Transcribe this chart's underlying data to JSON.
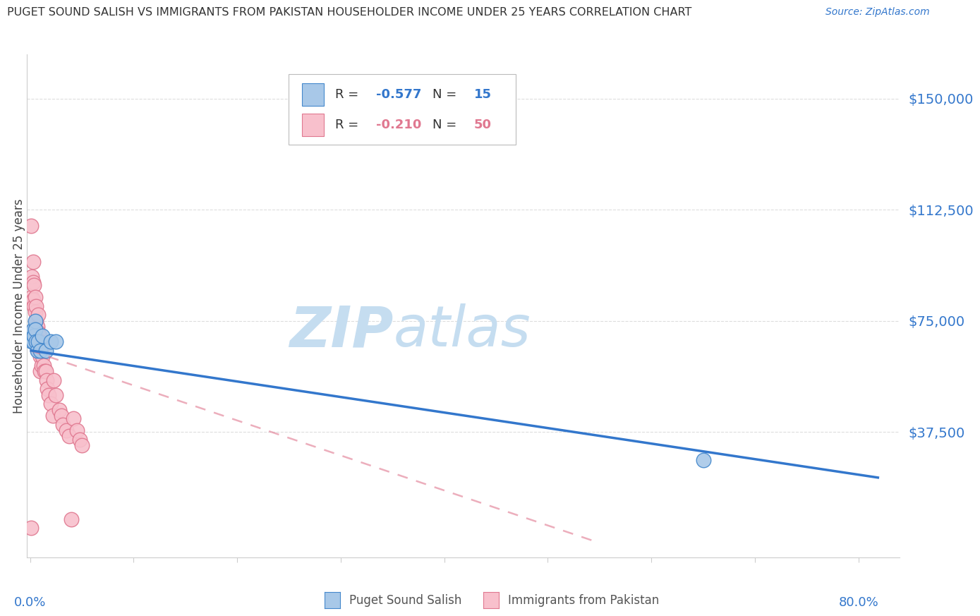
{
  "title": "PUGET SOUND SALISH VS IMMIGRANTS FROM PAKISTAN HOUSEHOLDER INCOME UNDER 25 YEARS CORRELATION CHART",
  "source": "Source: ZipAtlas.com",
  "ylabel": "Householder Income Under 25 years",
  "ytick_labels": [
    "$150,000",
    "$112,500",
    "$75,000",
    "$37,500"
  ],
  "ytick_values": [
    150000,
    112500,
    75000,
    37500
  ],
  "ylim": [
    -5000,
    165000
  ],
  "xlim": [
    -0.003,
    0.84
  ],
  "blue_color": "#a8c8e8",
  "blue_edge_color": "#4488cc",
  "blue_line_color": "#3377cc",
  "pink_color": "#f8c0cc",
  "pink_edge_color": "#e07890",
  "pink_line_color": "#cc8899",
  "watermark_zip_color": "#c5ddf0",
  "watermark_atlas_color": "#c5ddf0",
  "blue_scatter_x": [
    0.002,
    0.003,
    0.003,
    0.004,
    0.005,
    0.005,
    0.006,
    0.007,
    0.008,
    0.01,
    0.012,
    0.015,
    0.02,
    0.025,
    0.65
  ],
  "blue_scatter_y": [
    68000,
    72000,
    68000,
    70000,
    75000,
    72000,
    68000,
    65000,
    68000,
    65000,
    70000,
    65000,
    68000,
    68000,
    28000
  ],
  "pink_scatter_x": [
    0.001,
    0.001,
    0.002,
    0.002,
    0.003,
    0.003,
    0.003,
    0.004,
    0.004,
    0.005,
    0.005,
    0.005,
    0.005,
    0.006,
    0.006,
    0.006,
    0.007,
    0.007,
    0.008,
    0.008,
    0.008,
    0.009,
    0.009,
    0.01,
    0.01,
    0.01,
    0.011,
    0.011,
    0.012,
    0.013,
    0.014,
    0.015,
    0.016,
    0.017,
    0.018,
    0.02,
    0.022,
    0.023,
    0.025,
    0.028,
    0.03,
    0.032,
    0.035,
    0.038,
    0.04,
    0.042,
    0.045,
    0.048,
    0.05,
    0.005
  ],
  "pink_scatter_y": [
    107000,
    5000,
    90000,
    83000,
    95000,
    88000,
    82000,
    87000,
    80000,
    78000,
    83000,
    73000,
    68000,
    80000,
    75000,
    70000,
    73000,
    68000,
    77000,
    71000,
    65000,
    70000,
    65000,
    68000,
    63000,
    58000,
    65000,
    60000,
    63000,
    60000,
    58000,
    58000,
    55000,
    52000,
    50000,
    47000,
    43000,
    55000,
    50000,
    45000,
    43000,
    40000,
    38000,
    36000,
    8000,
    42000,
    38000,
    35000,
    33000,
    68000
  ],
  "blue_line_x0": 0.0,
  "blue_line_y0": 65000,
  "blue_line_x1": 0.82,
  "blue_line_y1": 22000,
  "pink_line_x0": 0.0,
  "pink_line_y0": 65000,
  "pink_line_x1": 0.55,
  "pink_line_y1": 0,
  "legend_R1": "R = ",
  "legend_V1": "-0.577",
  "legend_N1_label": "N = ",
  "legend_N1_val": "15",
  "legend_R2": "R = ",
  "legend_V2": "-0.210",
  "legend_N2_label": "N = ",
  "legend_N2_val": "50",
  "bottom_legend1": "Puget Sound Salish",
  "bottom_legend2": "Immigrants from Pakistan"
}
